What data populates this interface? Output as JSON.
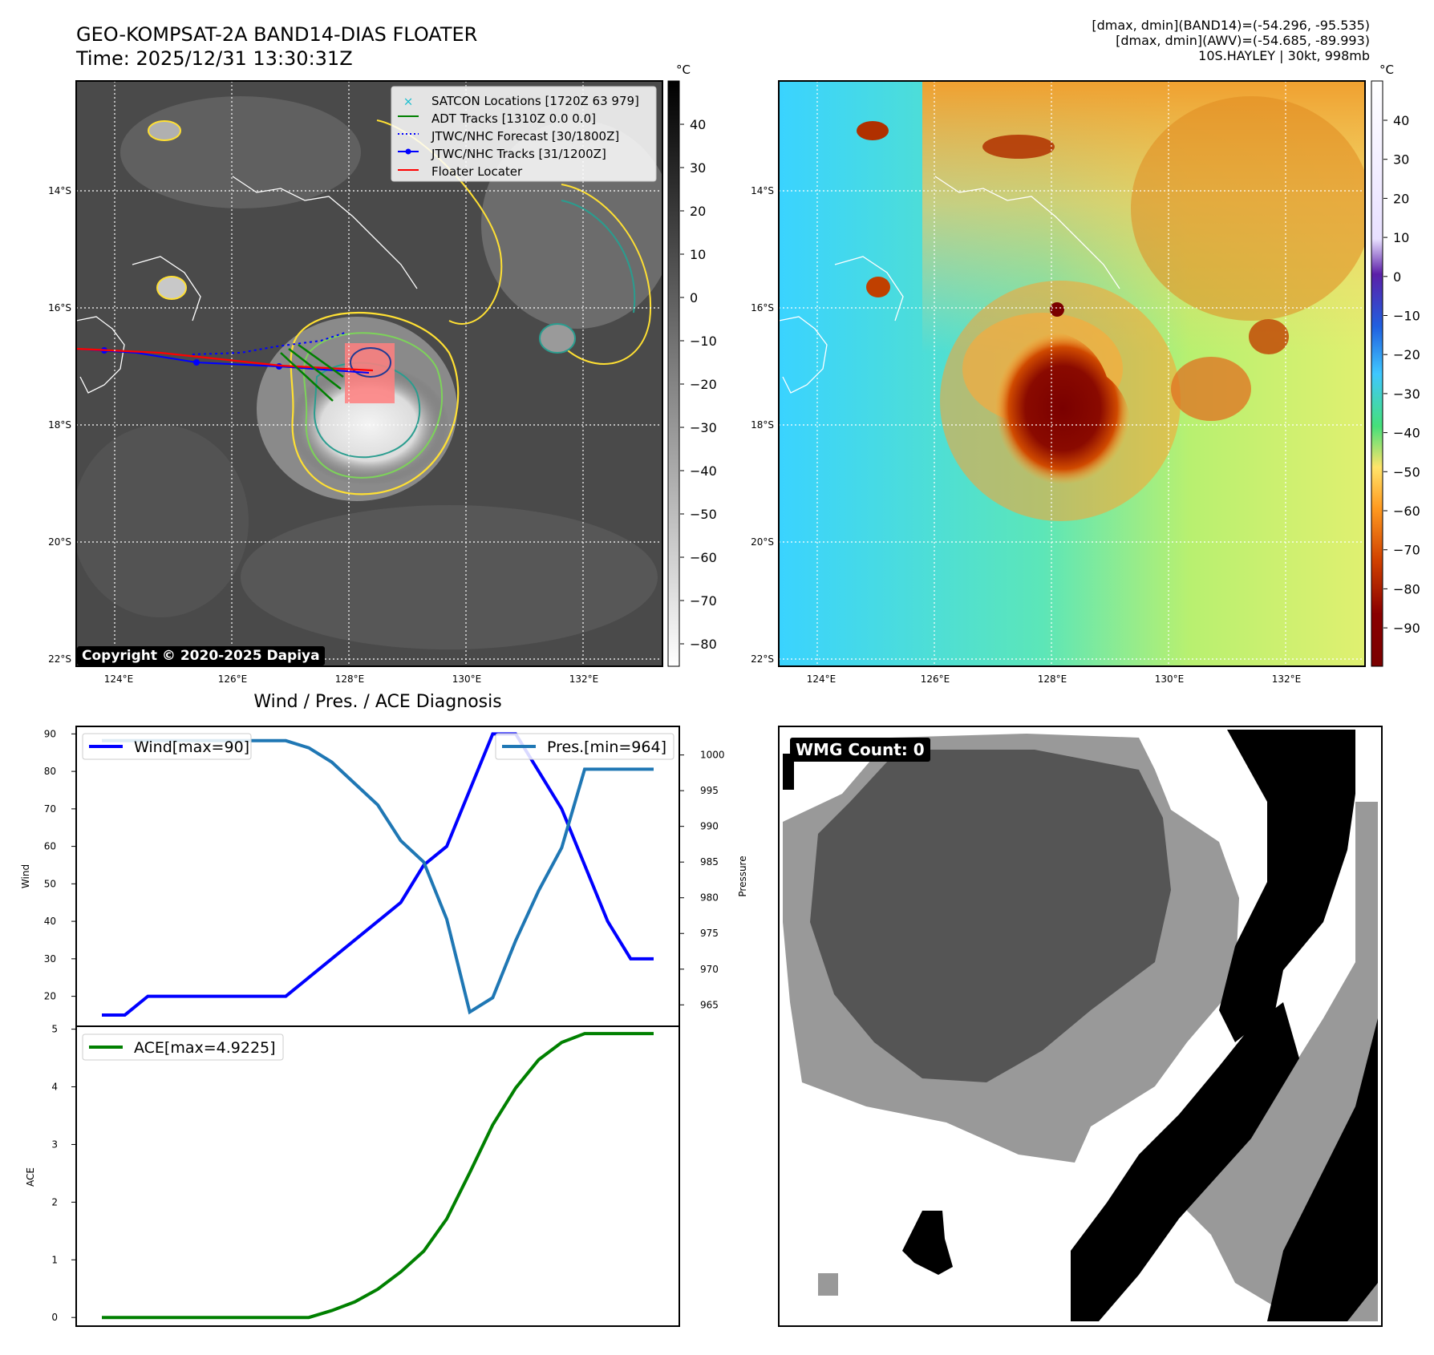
{
  "header": {
    "title_line1": "GEO-KOMPSAT-2A BAND14-DIAS FLOATER",
    "title_line2": "Time: 2025/12/31 13:30:31Z",
    "info_line1": "[dmax, dmin](BAND14)=(-54.296, -95.535)",
    "info_line2": "[dmax, dmin](AWV)=(-54.685, -89.993)",
    "info_line3": "10S.HAYLEY | 30kt, 998mb"
  },
  "map_axes": {
    "lat_labels": [
      "14°S",
      "16°S",
      "18°S",
      "20°S",
      "22°S"
    ],
    "lon_labels": [
      "124°E",
      "126°E",
      "128°E",
      "130°E",
      "132°E"
    ]
  },
  "ir_panel": {
    "copyright": "Copyright © 2020-2025 Dapiya",
    "colorbar_unit": "°C",
    "colorbar_ticks": [
      "40",
      "30",
      "20",
      "10",
      "0",
      "−10",
      "−20",
      "−30",
      "−40",
      "−50",
      "−60",
      "−70",
      "−80"
    ],
    "legend": [
      {
        "label": "SATCON Locations [1720Z 63 979]",
        "color": "#17becf"
      },
      {
        "label": "ADT Tracks [1310Z 0.0 0.0]",
        "color": "#008000"
      },
      {
        "label": "JTWC/NHC Forecast [30/1800Z]",
        "color": "#0000ff"
      },
      {
        "label": "JTWC/NHC Tracks [31/1200Z]",
        "color": "#0000ff"
      },
      {
        "label": "Floater Locater",
        "color": "#ff0000"
      }
    ]
  },
  "awv_panel": {
    "colorbar_unit": "°C",
    "colorbar_ticks": [
      "40",
      "30",
      "20",
      "10",
      "0",
      "−10",
      "−20",
      "−30",
      "−40",
      "−50",
      "−60",
      "−70",
      "−80",
      "−90"
    ]
  },
  "diagnosis": {
    "title": "Wind / Pres. / ACE Diagnosis",
    "wmg_count": "WMG Count: 0"
  },
  "colors": {
    "wind": "#0000ff",
    "pressure": "#1f77b4",
    "ace": "#008000",
    "floater": "#ff0000"
  },
  "chart_data": [
    {
      "type": "line",
      "title": "Wind / Pres. / ACE Diagnosis",
      "x": [
        0,
        1,
        2,
        3,
        4,
        5,
        6,
        7,
        8,
        9,
        10,
        11,
        12,
        13,
        14,
        15,
        16,
        17,
        18,
        19,
        20,
        21,
        22,
        23,
        24
      ],
      "series": [
        {
          "name": "Wind[max=90]",
          "axis": "left",
          "values": [
            15,
            15,
            20,
            20,
            20,
            20,
            20,
            20,
            20,
            25,
            30,
            35,
            40,
            45,
            55,
            60,
            75,
            90,
            90,
            80,
            70,
            55,
            40,
            30,
            30
          ]
        },
        {
          "name": "Pres.[min=964]",
          "axis": "right",
          "values": [
            1002,
            1002,
            1002,
            1002,
            1002,
            1002,
            1002,
            1002,
            1002,
            1001,
            999,
            996,
            993,
            988,
            985,
            977,
            964,
            966,
            974,
            981,
            987,
            998,
            998,
            998,
            998
          ]
        }
      ],
      "ylabel": "Wind",
      "ylabel_right": "Pressure",
      "ylim": [
        12,
        92
      ],
      "ylim_right": [
        962,
        1004
      ],
      "yticks": [
        20,
        30,
        40,
        50,
        60,
        70,
        80,
        90
      ],
      "yticks_right": [
        965,
        970,
        975,
        980,
        985,
        990,
        995,
        1000
      ]
    },
    {
      "type": "line",
      "x": [
        0,
        1,
        2,
        3,
        4,
        5,
        6,
        7,
        8,
        9,
        10,
        11,
        12,
        13,
        14,
        15,
        16,
        17,
        18,
        19,
        20,
        21,
        22,
        23,
        24
      ],
      "series": [
        {
          "name": "ACE[max=4.9225]",
          "values": [
            0,
            0,
            0,
            0,
            0,
            0,
            0,
            0,
            0,
            0,
            0.12,
            0.27,
            0.49,
            0.79,
            1.15,
            1.71,
            2.51,
            3.34,
            3.98,
            4.47,
            4.77,
            4.9225,
            4.9225,
            4.9225,
            4.9225
          ]
        }
      ],
      "ylabel": "ACE",
      "ylim": [
        -0.15,
        5.05
      ],
      "yticks": [
        0,
        1,
        2,
        3,
        4,
        5
      ]
    }
  ]
}
